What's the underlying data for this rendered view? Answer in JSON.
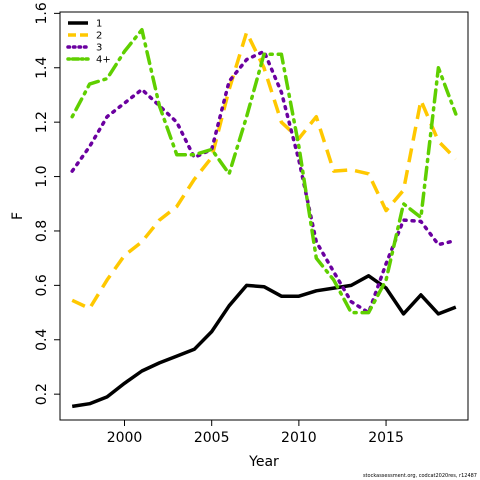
{
  "chart_data": {
    "type": "line",
    "xlabel": "Year",
    "ylabel": "F",
    "xlim": [
      1996.3,
      2019.7
    ],
    "ylim": [
      0.105,
      1.605
    ],
    "xticks": [
      2000,
      2005,
      2010,
      2015
    ],
    "yticks": [
      0.2,
      0.4,
      0.6,
      0.8,
      1.0,
      1.2,
      1.4,
      1.6
    ],
    "ytick_labels": [
      "0.2",
      "0.4",
      "0.6",
      "0.8",
      "1.0",
      "1.2",
      "1.4",
      "1.6"
    ],
    "legend_position": "top-left",
    "x": [
      1997,
      1998,
      1999,
      2000,
      2001,
      2002,
      2003,
      2004,
      2005,
      2006,
      2007,
      2008,
      2009,
      2010,
      2011,
      2012,
      2013,
      2014,
      2015,
      2016,
      2017,
      2018,
      2019
    ],
    "series": [
      {
        "name": "1",
        "color": "#000000",
        "dash": "solid",
        "values": [
          0.155,
          0.165,
          0.19,
          0.24,
          0.285,
          0.315,
          0.34,
          0.365,
          0.43,
          0.525,
          0.6,
          0.595,
          0.56,
          0.56,
          0.58,
          0.59,
          0.6,
          0.635,
          0.59,
          0.495,
          0.565,
          0.495,
          0.52
        ]
      },
      {
        "name": "2",
        "color": "#FFC800",
        "dash": "longdash",
        "values": [
          0.545,
          0.515,
          0.62,
          0.71,
          0.76,
          0.84,
          0.89,
          0.99,
          1.07,
          1.32,
          1.53,
          1.4,
          1.2,
          1.14,
          1.22,
          1.02,
          1.025,
          1.01,
          0.875,
          0.95,
          1.28,
          1.13,
          1.065
        ]
      },
      {
        "name": "3",
        "color": "#6B00A0",
        "dash": "dotted",
        "values": [
          1.02,
          1.11,
          1.22,
          1.27,
          1.32,
          1.26,
          1.2,
          1.07,
          1.1,
          1.35,
          1.43,
          1.46,
          1.31,
          1.06,
          0.76,
          0.65,
          0.54,
          0.5,
          0.68,
          0.84,
          0.835,
          0.75,
          0.765
        ]
      },
      {
        "name": "4+",
        "color": "#5FCF00",
        "dash": "dotdash",
        "values": [
          1.22,
          1.34,
          1.36,
          1.46,
          1.54,
          1.26,
          1.08,
          1.08,
          1.1,
          1.01,
          1.22,
          1.45,
          1.45,
          1.11,
          0.7,
          0.62,
          0.5,
          0.5,
          0.62,
          0.9,
          0.85,
          1.4,
          1.23
        ]
      }
    ]
  },
  "caption": "stockassessment.org, codcat2020res, r12487"
}
